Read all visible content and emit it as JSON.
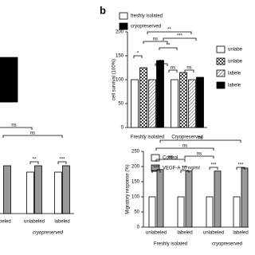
{
  "chart_data": [
    {
      "type": "bar",
      "categories": [
        null
      ],
      "series": [
        {
          "name": "freshly isolated",
          "color": "#ffffff",
          "values": [
            null
          ]
        },
        {
          "name": "cryopreserved",
          "color": "#000000",
          "values": [
            115
          ]
        }
      ],
      "ylim": [
        0,
        150
      ]
    },
    {
      "type": "bar",
      "panel_label": "b",
      "y_label": "cell survival (100%)",
      "categories": [
        "Freshly isolated",
        "Cryopreserved"
      ],
      "series": [
        {
          "name": "unlabe",
          "color": "#ffffff",
          "values": [
            100,
            100
          ]
        },
        {
          "name": "unlabe",
          "color": "#ffffff",
          "pattern": "checkered",
          "values": [
            125,
            115
          ]
        },
        {
          "name": "labele",
          "color": "#ffffff",
          "pattern": "hatched",
          "values": [
            100,
            100
          ]
        },
        {
          "name": "labele",
          "color": "#000000",
          "values": [
            140,
            105
          ]
        }
      ],
      "ylim": [
        0,
        200
      ],
      "yticks": [
        0,
        50,
        100,
        150,
        200
      ],
      "annotations": [
        "*",
        "ns",
        "**",
        "***",
        "ns",
        "**",
        "ns",
        "ns"
      ]
    },
    {
      "type": "bar",
      "categories": [
        "labeled",
        "unlabeled",
        "labeled"
      ],
      "group_label": "cryopreserved",
      "series": [
        {
          "name": "Control",
          "color": "#ffffff",
          "values": [
            null,
            130,
            130
          ]
        },
        {
          "name": "VEGF-A 10 ng/ml",
          "color": "#999999",
          "values": [
            150,
            150,
            150
          ]
        }
      ],
      "ylim": [
        0,
        250
      ],
      "annotations": [
        "ns",
        "ns",
        "**",
        "***"
      ]
    },
    {
      "type": "bar",
      "y_label": "Migratory response (%)",
      "categories": [
        "unlabeled",
        "labeled",
        "unlabeled",
        "labeled"
      ],
      "groups": [
        "Freshly isolated",
        "cryopreserved"
      ],
      "series": [
        {
          "name": "Control",
          "color": "#ffffff",
          "values": [
            100,
            100,
            100,
            100
          ]
        },
        {
          "name": "VEGF-A 10 ng/ml",
          "color": "#999999",
          "values": [
            190,
            185,
            185,
            195
          ]
        }
      ],
      "ylim": [
        0,
        250
      ],
      "yticks": [
        0,
        50,
        100,
        150,
        200,
        250
      ],
      "annotations": [
        "***",
        "***",
        "***",
        "***",
        "ns",
        "ns",
        "ns",
        "ns"
      ]
    }
  ]
}
